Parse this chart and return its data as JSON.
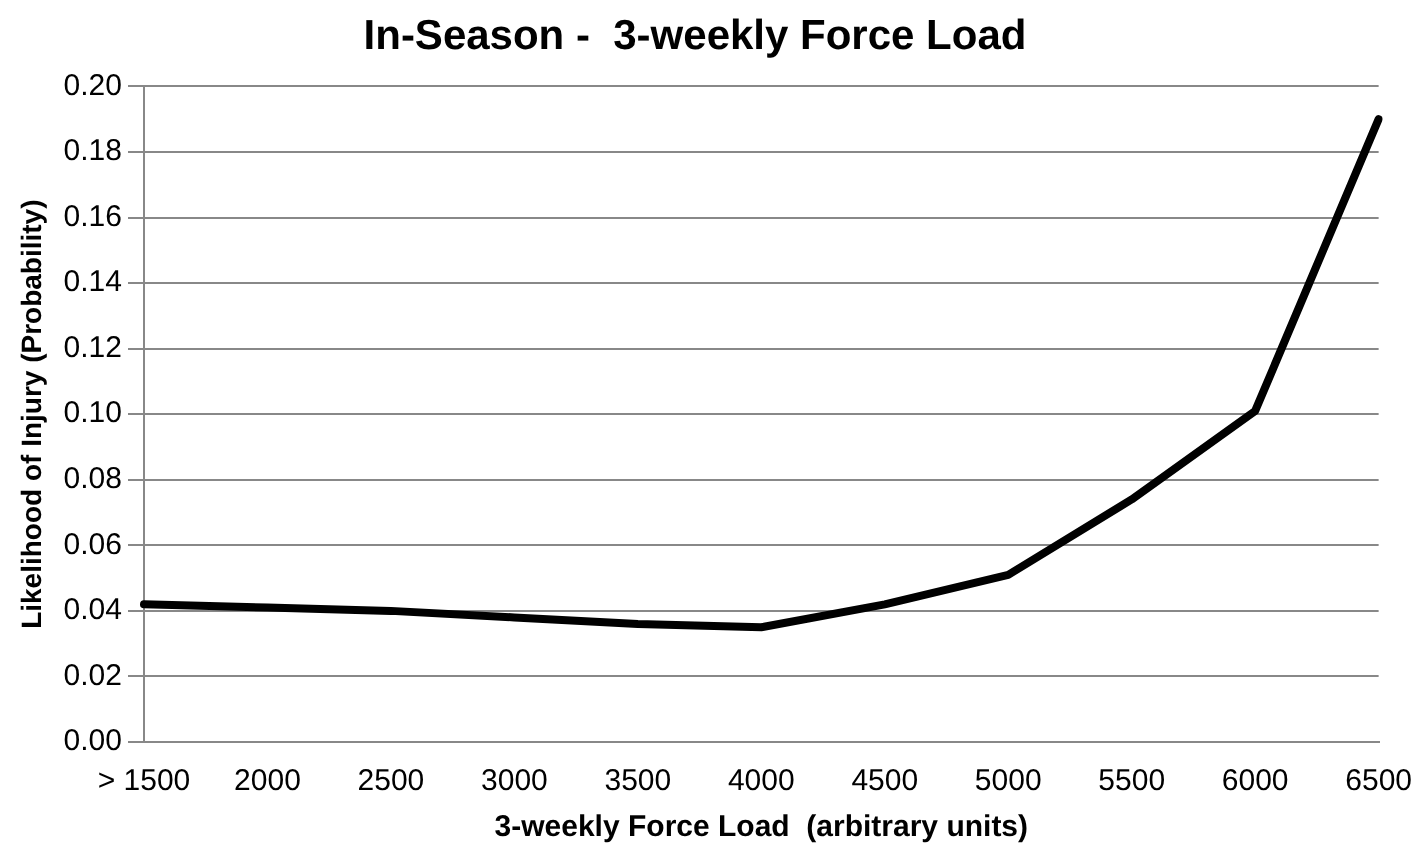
{
  "chart_data": {
    "type": "line",
    "title": "In-Season -  3-weekly Force Load",
    "xlabel": "3-weekly Force Load  (arbitrary units)",
    "ylabel": "Likelihood of Injury (Probability)",
    "categories": [
      "> 1500",
      "2000",
      "2500",
      "3000",
      "3500",
      "4000",
      "4500",
      "5000",
      "5500",
      "6000",
      "6500"
    ],
    "series": [
      {
        "color": "#000000",
        "values": [
          0.042,
          0.041,
          0.04,
          0.038,
          0.036,
          0.035,
          0.042,
          0.051,
          0.074,
          0.101,
          0.19
        ]
      }
    ],
    "ylim": [
      0,
      0.2
    ],
    "yticks": [
      {
        "value": 0,
        "label": "0.00"
      },
      {
        "value": 0.02,
        "label": "0.02"
      },
      {
        "value": 0.04,
        "label": "0.04"
      },
      {
        "value": 0.06,
        "label": "0.06"
      },
      {
        "value": 0.08,
        "label": "0.08"
      },
      {
        "value": 0.1,
        "label": "0.10"
      },
      {
        "value": 0.12,
        "label": "0.12"
      },
      {
        "value": 0.14,
        "label": "0.14"
      },
      {
        "value": 0.16,
        "label": "0.16"
      },
      {
        "value": 0.18,
        "label": "0.18"
      },
      {
        "value": 0.2,
        "label": "0.20"
      }
    ],
    "grid": "y",
    "legend": false,
    "marker": "none",
    "line_style": "solid"
  }
}
